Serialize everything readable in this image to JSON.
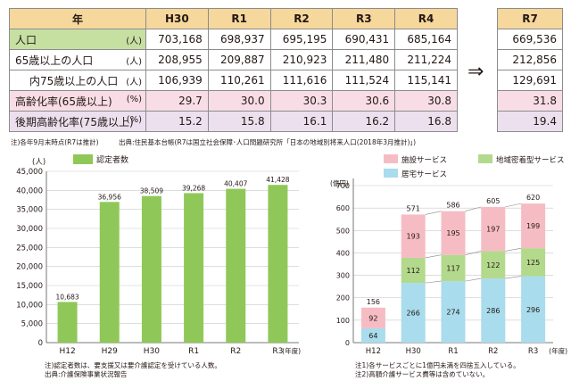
{
  "table": {
    "header": {
      "label": "年",
      "years": [
        "H30",
        "R1",
        "R2",
        "R3",
        "R4"
      ],
      "r7": "R7"
    },
    "rows": [
      {
        "label": "人口",
        "unit": "(人)",
        "values": [
          "703,168",
          "698,937",
          "695,195",
          "690,431",
          "685,164"
        ],
        "r7": "669,536",
        "style": "green"
      },
      {
        "label": "65歳以上の人口",
        "unit": "(人)",
        "values": [
          "208,955",
          "209,887",
          "210,923",
          "211,480",
          "211,224"
        ],
        "r7": "212,856",
        "style": "plain"
      },
      {
        "label": "内75歳以上の人口",
        "unit": "(人)",
        "values": [
          "106,939",
          "110,261",
          "111,616",
          "111,524",
          "115,141"
        ],
        "r7": "129,691",
        "style": "plain"
      },
      {
        "label": "高齢化率(65歳以上)",
        "unit": "(%)",
        "values": [
          "29.7",
          "30.0",
          "30.3",
          "30.6",
          "30.8"
        ],
        "r7": "31.8",
        "style": "pink"
      },
      {
        "label": "後期高齢化率(75歳以上)",
        "unit": "(%)",
        "values": [
          "15.2",
          "15.8",
          "16.1",
          "16.2",
          "16.8"
        ],
        "r7": "19.4",
        "style": "purple"
      }
    ],
    "arrow": "⇒",
    "note": "注)各年9月末時点(R7は推計)　　　出典:住民基本台帳(R7は国立社会保障･人口問題研究所「日本の地域別将来人口(2018年3月推計)」)"
  },
  "chart_data": [
    {
      "type": "bar",
      "title": "",
      "legend": [
        "認定者数"
      ],
      "ylabel": "(人)",
      "xlabel": "(年度)",
      "categories": [
        "H12",
        "H29",
        "H30",
        "R1",
        "R2",
        "R3"
      ],
      "values": [
        10683,
        36956,
        38509,
        39268,
        40407,
        41428
      ],
      "value_labels": [
        "10,683",
        "36,956",
        "38,509",
        "39,268",
        "40,407",
        "41,428"
      ],
      "ylim": [
        0,
        45000
      ],
      "yticks": [
        0,
        5000,
        10000,
        15000,
        20000,
        25000,
        30000,
        35000,
        40000,
        45000
      ],
      "ytick_labels": [
        "0",
        "5,000",
        "10,000",
        "15,000",
        "20,000",
        "25,000",
        "30,000",
        "35,000",
        "40,000",
        "45,000"
      ],
      "colors": {
        "bar": "#8fc858"
      },
      "notes": [
        "注)認定者数は、要支援又は要介護認定を受けている人数。",
        "出典:介護保険事業状況報告"
      ]
    },
    {
      "type": "bar",
      "stacked": true,
      "title": "",
      "ylabel": "(億円)",
      "xlabel": "(年度)",
      "categories": [
        "H12",
        "H30",
        "R1",
        "R2",
        "R3"
      ],
      "series": [
        {
          "name": "居宅サービス",
          "values": [
            64,
            266,
            274,
            286,
            296
          ],
          "color": "#a9dcec"
        },
        {
          "name": "地域密着型サービス",
          "values": [
            0,
            112,
            117,
            122,
            125
          ],
          "color": "#b3d98d"
        },
        {
          "name": "施設サービス",
          "values": [
            92,
            193,
            195,
            197,
            199
          ],
          "color": "#f6bcc4"
        }
      ],
      "totals": [
        156,
        571,
        586,
        605,
        620
      ],
      "ylim": [
        0,
        700
      ],
      "yticks": [
        0,
        100,
        200,
        300,
        400,
        500,
        600,
        700
      ],
      "legend": [
        "施設サービス",
        "地域密着型サービス",
        "居宅サービス"
      ],
      "notes": [
        "注1)各サービスごとに1億円未満を四捨五入している。",
        "注2)高額介護サービス費等は含めていない。"
      ]
    }
  ]
}
